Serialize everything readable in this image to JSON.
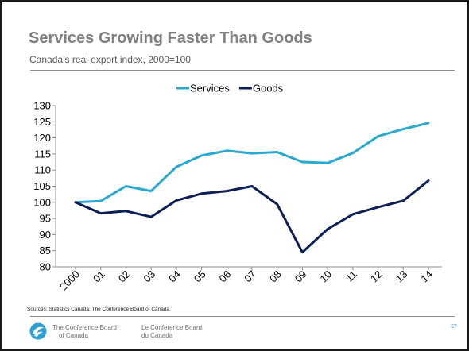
{
  "slide": {
    "title": "Services Growing Faster Than Goods",
    "subtitle": "Canada’s real export index, 2000=100",
    "sources": "Sources: Statistics Canada; The Conference Board of Canada.",
    "brand_en_line1": "The Conference Board",
    "brand_en_line2": "of Canada",
    "brand_fr_line1": "Le Conference Board",
    "brand_fr_line2": "du Canada",
    "page_number": "37",
    "logo_icon": "conference-board-logo-icon"
  },
  "chart_data": {
    "type": "line",
    "categories": [
      "2000",
      "01",
      "02",
      "03",
      "04",
      "05",
      "06",
      "07",
      "08",
      "09",
      "10",
      "11",
      "12",
      "13",
      "14"
    ],
    "ylim": [
      80,
      130
    ],
    "yticks": [
      80,
      85,
      90,
      95,
      100,
      105,
      110,
      115,
      120,
      125,
      130
    ],
    "legend_position": "top-center",
    "grid": false,
    "series": [
      {
        "name": "Services",
        "color": "#2ba8d0",
        "values": [
          100,
          100.4,
          105,
          103.5,
          111,
          114.5,
          116,
          115.2,
          115.6,
          112.5,
          112.2,
          115.3,
          120.5,
          122.7,
          124.6
        ]
      },
      {
        "name": "Goods",
        "color": "#0b1e55",
        "values": [
          100,
          96.6,
          97.3,
          95.5,
          100.6,
          102.7,
          103.5,
          105,
          99.4,
          84.5,
          91.7,
          96.3,
          98.5,
          100.5,
          106.7
        ]
      }
    ]
  }
}
